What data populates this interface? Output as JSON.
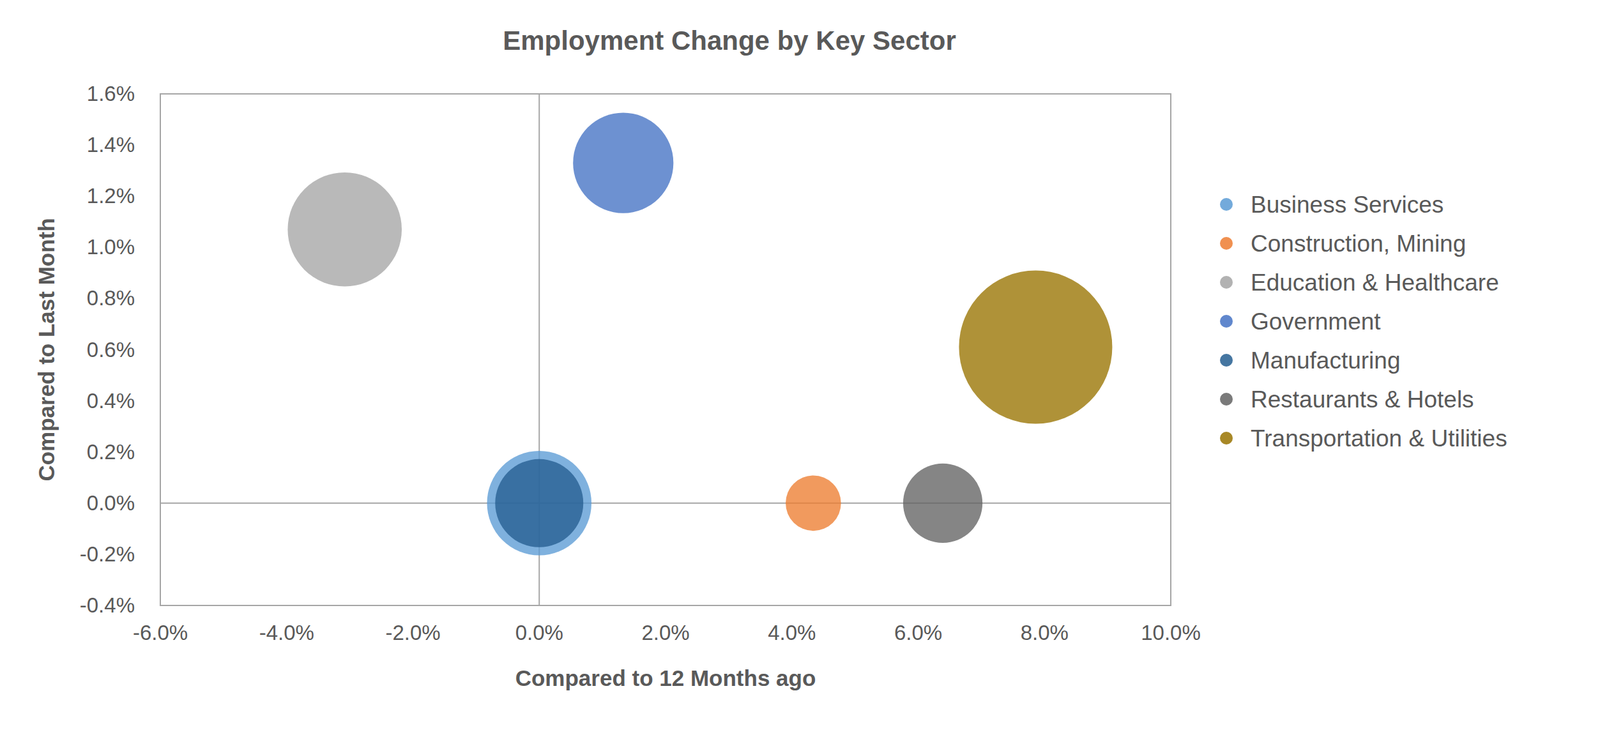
{
  "chart_data": {
    "type": "bubble",
    "title": "Employment Change by Key Sector",
    "x_label": "Compared to 12 Months ago",
    "y_label": "Compared to Last Month",
    "xlim": [
      -6,
      10
    ],
    "ylim": [
      -0.4,
      1.6
    ],
    "xticks": [
      {
        "value": -6,
        "label": "-6.0%"
      },
      {
        "value": -4,
        "label": "-4.0%"
      },
      {
        "value": -2,
        "label": "-2.0%"
      },
      {
        "value": 0,
        "label": "0.0%"
      },
      {
        "value": 2,
        "label": "2.0%"
      },
      {
        "value": 4,
        "label": "4.0%"
      },
      {
        "value": 6,
        "label": "6.0%"
      },
      {
        "value": 8,
        "label": "8.0%"
      },
      {
        "value": 10,
        "label": "10.0%"
      }
    ],
    "yticks": [
      {
        "value": -0.4,
        "label": "-0.4%"
      },
      {
        "value": -0.2,
        "label": "-0.2%"
      },
      {
        "value": 0,
        "label": "0.0%"
      },
      {
        "value": 0.2,
        "label": "0.2%"
      },
      {
        "value": 0.4,
        "label": "0.4%"
      },
      {
        "value": 0.6,
        "label": "0.6%"
      },
      {
        "value": 0.8,
        "label": "0.8%"
      },
      {
        "value": 1.0,
        "label": "1.0%"
      },
      {
        "value": 1.2,
        "label": "1.2%"
      },
      {
        "value": 1.4,
        "label": "1.4%"
      },
      {
        "value": 1.6,
        "label": "1.6%"
      }
    ],
    "grid": false,
    "legend": "right",
    "series": [
      {
        "name": "Business Services",
        "color": "#5B9BD5",
        "x": [
          0.0
        ],
        "values": [
          0.0
        ],
        "sizes": [
          2.6
        ]
      },
      {
        "name": "Construction, Mining",
        "color": "#ED7D31",
        "x": [
          4.34
        ],
        "values": [
          0.0
        ],
        "sizes": [
          0.73
        ]
      },
      {
        "name": "Education & Healthcare",
        "color": "#A5A5A5",
        "x": [
          -3.08
        ],
        "values": [
          1.07
        ],
        "sizes": [
          3.1
        ]
      },
      {
        "name": "Government",
        "color": "#4472C4",
        "x": [
          1.33
        ],
        "values": [
          1.33
        ],
        "sizes": [
          2.4
        ]
      },
      {
        "name": "Manufacturing",
        "color": "#255E91",
        "x": [
          0.0
        ],
        "values": [
          0.0
        ],
        "sizes": [
          1.85
        ]
      },
      {
        "name": "Restaurants & Hotels",
        "color": "#636363",
        "x": [
          6.39
        ],
        "values": [
          0.0
        ],
        "sizes": [
          1.5
        ]
      },
      {
        "name": "Transportation & Utilities",
        "color": "#997300",
        "x": [
          7.86
        ],
        "values": [
          0.61
        ],
        "sizes": [
          5.6
        ]
      }
    ]
  }
}
